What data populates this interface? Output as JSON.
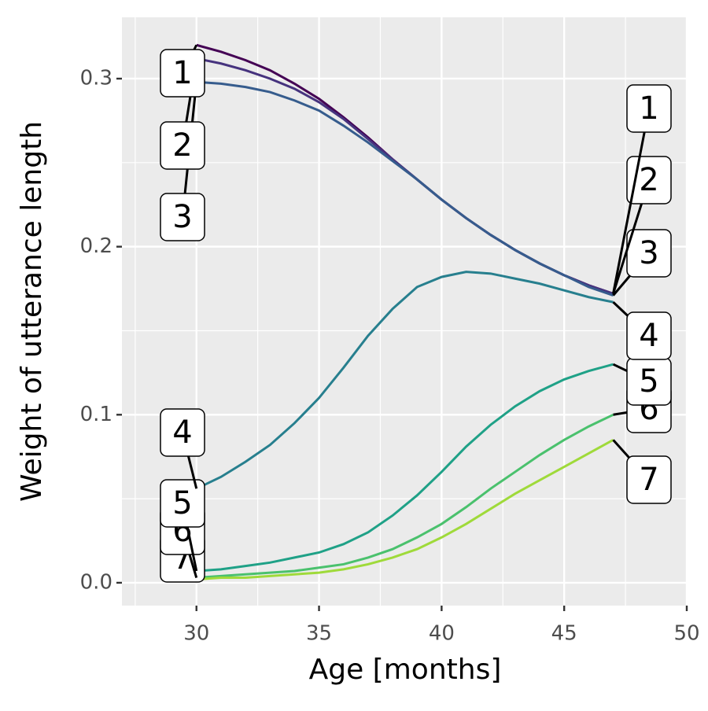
{
  "chart_data": {
    "type": "line",
    "x_label": "Age [months]",
    "y_label": "Weight of utterance length",
    "x": [
      30,
      31,
      32,
      33,
      34,
      35,
      36,
      37,
      38,
      39,
      40,
      41,
      42,
      43,
      44,
      45,
      46,
      47
    ],
    "series": [
      {
        "name": "1",
        "color": "#440154",
        "values": [
          0.32,
          0.316,
          0.311,
          0.305,
          0.297,
          0.288,
          0.277,
          0.265,
          0.252,
          0.24,
          0.228,
          0.217,
          0.207,
          0.198,
          0.19,
          0.183,
          0.177,
          0.172
        ]
      },
      {
        "name": "2",
        "color": "#46337e",
        "values": [
          0.312,
          0.309,
          0.305,
          0.3,
          0.294,
          0.286,
          0.276,
          0.264,
          0.252,
          0.24,
          0.228,
          0.217,
          0.207,
          0.198,
          0.19,
          0.183,
          0.177,
          0.172
        ]
      },
      {
        "name": "3",
        "color": "#365c8d",
        "values": [
          0.298,
          0.297,
          0.295,
          0.292,
          0.287,
          0.281,
          0.272,
          0.262,
          0.251,
          0.24,
          0.228,
          0.217,
          0.207,
          0.198,
          0.19,
          0.183,
          0.176,
          0.171
        ]
      },
      {
        "name": "4",
        "color": "#277f8e",
        "values": [
          0.056,
          0.063,
          0.072,
          0.082,
          0.095,
          0.11,
          0.128,
          0.147,
          0.163,
          0.176,
          0.182,
          0.185,
          0.184,
          0.181,
          0.178,
          0.174,
          0.17,
          0.167
        ]
      },
      {
        "name": "5",
        "color": "#1fa187",
        "values": [
          0.007,
          0.008,
          0.01,
          0.012,
          0.015,
          0.018,
          0.023,
          0.03,
          0.04,
          0.052,
          0.066,
          0.081,
          0.094,
          0.105,
          0.114,
          0.121,
          0.126,
          0.13
        ]
      },
      {
        "name": "6",
        "color": "#4ac16d",
        "values": [
          0.003,
          0.004,
          0.005,
          0.006,
          0.007,
          0.009,
          0.011,
          0.015,
          0.02,
          0.027,
          0.035,
          0.045,
          0.056,
          0.066,
          0.076,
          0.085,
          0.093,
          0.1
        ]
      },
      {
        "name": "7",
        "color": "#9fda3a",
        "values": [
          0.002,
          0.003,
          0.003,
          0.004,
          0.005,
          0.006,
          0.008,
          0.011,
          0.015,
          0.02,
          0.027,
          0.035,
          0.044,
          0.053,
          0.061,
          0.069,
          0.077,
          0.085
        ]
      }
    ],
    "xlim": [
      26.96,
      50
    ],
    "xticks": [
      30,
      35,
      40,
      45,
      50
    ],
    "ylim": [
      -0.0136,
      0.3365
    ],
    "yticks": [
      {
        "value": 0,
        "label": "0.0"
      },
      {
        "value": 0.1,
        "label": "0.1"
      },
      {
        "value": 0.2,
        "label": "0.2"
      },
      {
        "value": 0.3,
        "label": "0.3"
      }
    ],
    "grid": true
  }
}
